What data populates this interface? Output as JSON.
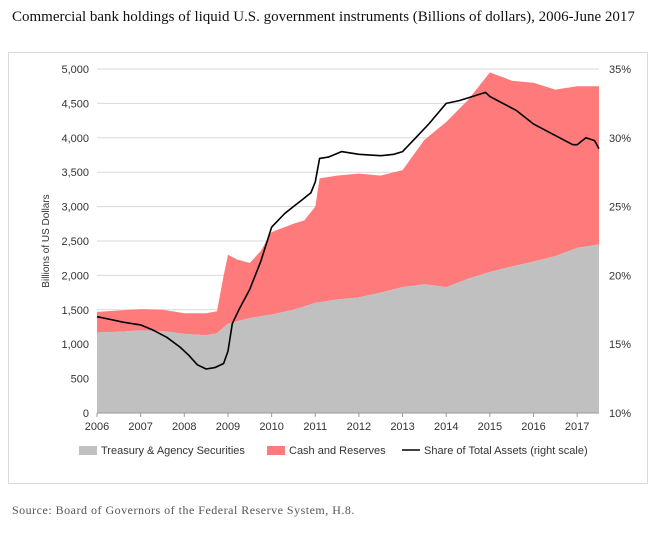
{
  "title": "Commercial bank holdings of liquid U.S. government instruments (Billions of dollars), 2006-June 2017",
  "source": "Source: Board of Governors of the Federal Reserve System, H.8.",
  "colors": {
    "treasury": "#c0c0c0",
    "cash": "#ff7b7b",
    "share_line": "#000000"
  },
  "chart_data": {
    "type": "area",
    "title": "Commercial bank holdings of liquid U.S. government instruments (Billions of dollars), 2006-June 2017",
    "ylabel": "Billions of US Dollars",
    "xlabel": "",
    "ylim": [
      0,
      5000
    ],
    "y2lim": [
      10,
      35
    ],
    "y2_unit": "%",
    "xlim": [
      2006,
      2017.5
    ],
    "x_ticks": [
      "2006",
      "2007",
      "2008",
      "2009",
      "2010",
      "2011",
      "2012",
      "2013",
      "2014",
      "2015",
      "2016",
      "2017"
    ],
    "y_ticks": [
      "0",
      "500",
      "1,000",
      "1,500",
      "2,000",
      "2,500",
      "3,000",
      "3,500",
      "4,000",
      "4,500",
      "5,000"
    ],
    "y2_ticks": [
      "10%",
      "15%",
      "20%",
      "25%",
      "30%",
      "35%"
    ],
    "grid": true,
    "legend_position": "bottom",
    "legend": [
      "Treasury & Agency Securities",
      "Cash and Reserves",
      "Share of Total Assets (right scale)"
    ],
    "series": [
      {
        "name": "Treasury & Agency Securities",
        "kind": "area",
        "axis": "left",
        "x": [
          2006.0,
          2006.5,
          2007.0,
          2007.5,
          2008.0,
          2008.5,
          2008.75,
          2009.0,
          2009.5,
          2010.0,
          2010.5,
          2011.0,
          2011.5,
          2012.0,
          2012.5,
          2013.0,
          2013.5,
          2014.0,
          2014.5,
          2015.0,
          2015.5,
          2016.0,
          2016.5,
          2017.0,
          2017.5
        ],
        "values": [
          1170,
          1180,
          1200,
          1190,
          1150,
          1130,
          1160,
          1300,
          1380,
          1430,
          1500,
          1600,
          1650,
          1680,
          1750,
          1830,
          1870,
          1830,
          1950,
          2050,
          2130,
          2200,
          2280,
          2400,
          2450
        ]
      },
      {
        "name": "Cash and Reserves",
        "kind": "stacked-area",
        "axis": "left",
        "x": [
          2006.0,
          2006.5,
          2007.0,
          2007.5,
          2008.0,
          2008.5,
          2008.75,
          2008.9,
          2009.0,
          2009.2,
          2009.5,
          2009.75,
          2010.0,
          2010.5,
          2010.75,
          2011.0,
          2011.1,
          2011.5,
          2012.0,
          2012.5,
          2013.0,
          2013.5,
          2014.0,
          2014.5,
          2015.0,
          2015.5,
          2016.0,
          2016.5,
          2017.0,
          2017.5
        ],
        "values": [
          300,
          310,
          310,
          310,
          300,
          320,
          320,
          750,
          1000,
          900,
          800,
          950,
          1200,
          1250,
          1250,
          1400,
          1800,
          1800,
          1800,
          1700,
          1700,
          2100,
          2400,
          2600,
          2900,
          2700,
          2600,
          2420,
          2350,
          2300
        ]
      },
      {
        "name": "Share of Total Assets (right scale)",
        "kind": "line",
        "axis": "right",
        "x": [
          2006.0,
          2006.3,
          2006.6,
          2007.0,
          2007.3,
          2007.6,
          2007.9,
          2008.1,
          2008.3,
          2008.5,
          2008.7,
          2008.9,
          2009.0,
          2009.1,
          2009.25,
          2009.5,
          2009.75,
          2010.0,
          2010.3,
          2010.5,
          2010.7,
          2010.9,
          2011.0,
          2011.1,
          2011.3,
          2011.6,
          2012.0,
          2012.5,
          2012.8,
          2013.0,
          2013.3,
          2013.6,
          2014.0,
          2014.3,
          2014.6,
          2014.9,
          2015.0,
          2015.3,
          2015.6,
          2016.0,
          2016.3,
          2016.6,
          2016.9,
          2017.0,
          2017.2,
          2017.4,
          2017.5
        ],
        "values": [
          17.0,
          16.8,
          16.6,
          16.4,
          16.0,
          15.5,
          14.8,
          14.2,
          13.5,
          13.2,
          13.3,
          13.6,
          14.5,
          16.5,
          17.5,
          19.0,
          21.0,
          23.5,
          24.5,
          25.0,
          25.5,
          26.0,
          26.8,
          28.5,
          28.6,
          29.0,
          28.8,
          28.7,
          28.8,
          29.0,
          30.0,
          31.0,
          32.5,
          32.7,
          33.0,
          33.3,
          33.0,
          32.5,
          32.0,
          31.0,
          30.5,
          30.0,
          29.5,
          29.5,
          30.0,
          29.8,
          29.2
        ]
      }
    ]
  }
}
